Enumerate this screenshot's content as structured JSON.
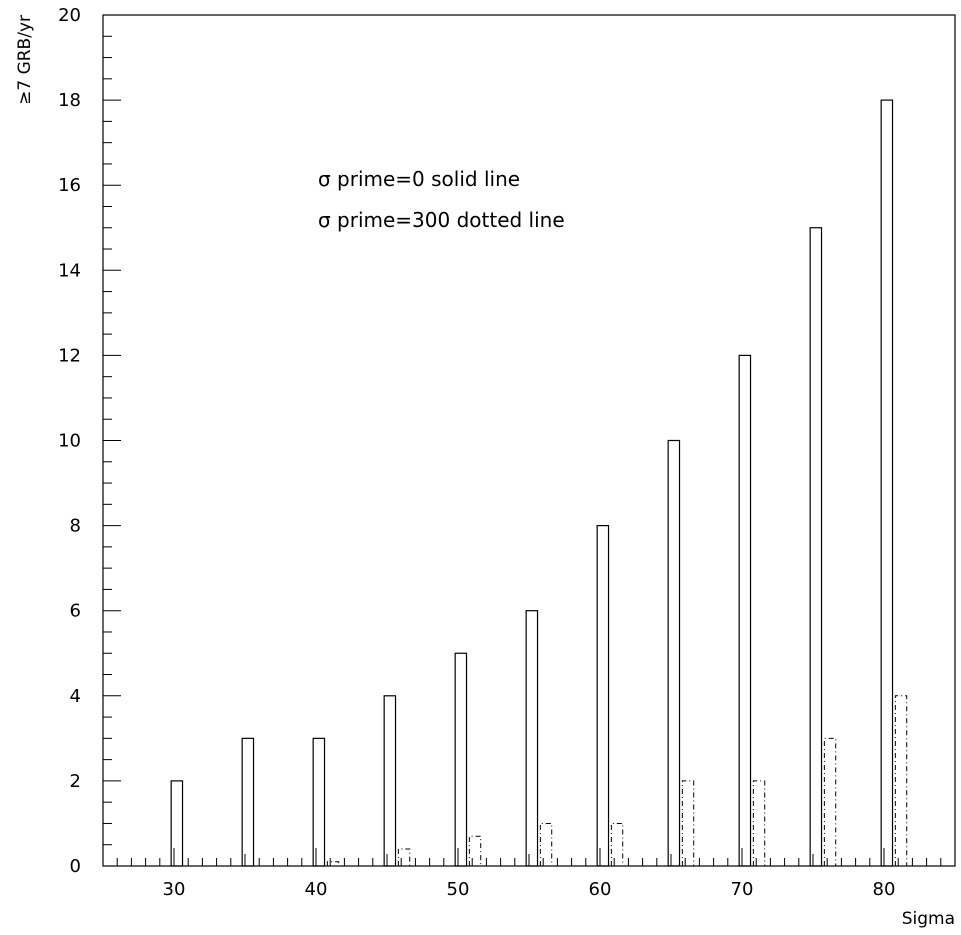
{
  "chart_data": {
    "type": "bar",
    "title": "",
    "xlabel": "Sigma",
    "ylabel": "≥7 GRB/yr",
    "xlim": [
      25,
      85
    ],
    "ylim": [
      0,
      20
    ],
    "x_ticks": [
      30,
      40,
      50,
      60,
      70,
      80
    ],
    "y_ticks": [
      0,
      2,
      4,
      6,
      8,
      10,
      12,
      14,
      16,
      18,
      20
    ],
    "grid": false,
    "annotations": [
      "σ prime=0 solid line",
      "σ prime=300 dotted line"
    ],
    "series": [
      {
        "style": "solid",
        "x": [
          30,
          35,
          40,
          45,
          50,
          55,
          60,
          65,
          70,
          75,
          80
        ],
        "values": [
          2,
          3,
          3,
          4,
          5,
          6,
          8,
          10,
          12,
          15,
          18
        ]
      },
      {
        "style": "dotted",
        "x": [
          30,
          35,
          40,
          45,
          50,
          55,
          60,
          65,
          70,
          75,
          80
        ],
        "values": [
          0,
          0,
          0.1,
          0.4,
          0.7,
          1,
          1,
          2,
          2,
          3,
          4
        ]
      }
    ]
  }
}
